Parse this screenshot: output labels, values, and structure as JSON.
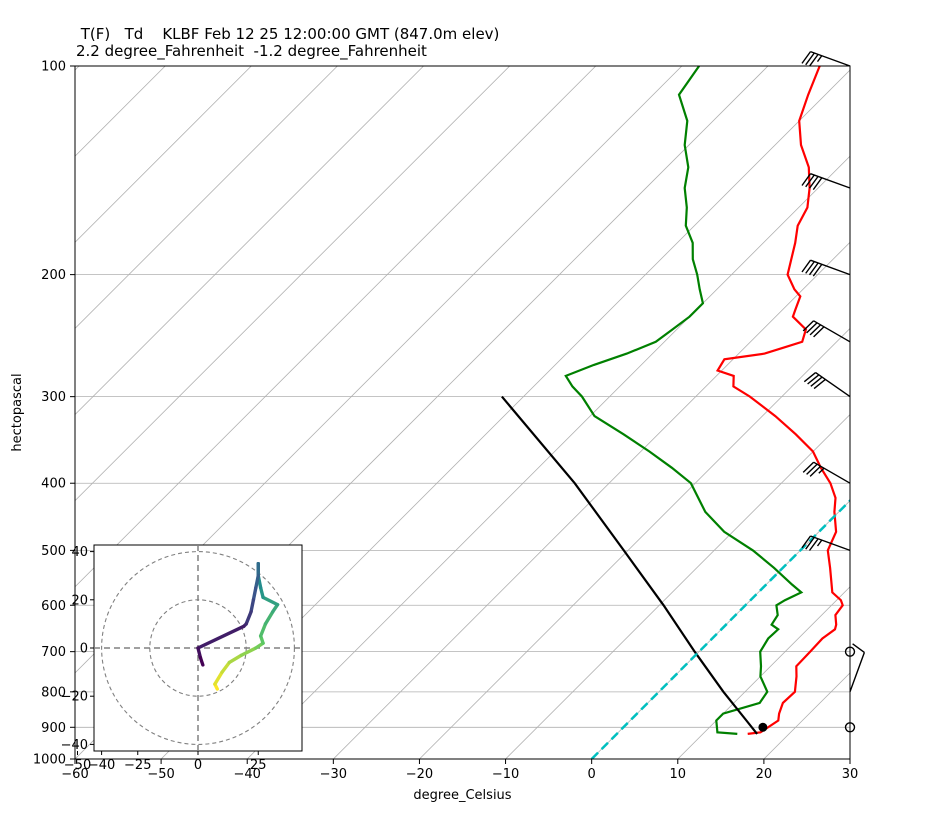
{
  "header": {
    "title_line1": " T(F)   Td    KLBF Feb 12 25 12:00:00 GMT (847.0m elev)",
    "title_line2": "2.2 degree_Fahrenheit  -1.2 degree_Fahrenheit"
  },
  "chart_data": [
    {
      "type": "line",
      "title": "",
      "xlabel": "degree_Celsius",
      "ylabel": "hectopascal",
      "xlim": [
        -60,
        30
      ],
      "ylim": [
        1000,
        100
      ],
      "y_scale": "log",
      "x_ticks": [
        -60,
        -50,
        -40,
        -30,
        -20,
        -10,
        0,
        10,
        20,
        30
      ],
      "x_tick_labels": [
        "−60",
        "−50",
        "−40",
        "−30",
        "−20",
        "−10",
        "0",
        "10",
        "20",
        "30"
      ],
      "y_ticks": [
        1000,
        900,
        800,
        700,
        600,
        500,
        400,
        300,
        200,
        100
      ],
      "grid": true,
      "skew_isotherms": true,
      "colors": {
        "temperature": "#ff0000",
        "dewpoint": "#008000",
        "parcel": "#000000",
        "zero_isotherm": "#00bfbf",
        "grid": "#b0b0b0"
      },
      "series": [
        {
          "role": "temperature",
          "points": [
            [
              920,
              15.2
            ],
            [
              915,
              16.5
            ],
            [
              880,
              17.2
            ],
            [
              860,
              16.5
            ],
            [
              830,
              15.7
            ],
            [
              800,
              15.8
            ],
            [
              760,
              14.2
            ],
            [
              735,
              13.0
            ],
            [
              700,
              12.9
            ],
            [
              670,
              12.8
            ],
            [
              650,
              13.2
            ],
            [
              640,
              12.8
            ],
            [
              620,
              11.6
            ],
            [
              600,
              11.3
            ],
            [
              590,
              10.5
            ],
            [
              575,
              8.6
            ],
            [
              560,
              7.6
            ],
            [
              530,
              5.5
            ],
            [
              500,
              3.2
            ],
            [
              470,
              2.0
            ],
            [
              440,
              -0.5
            ],
            [
              420,
              -2.0
            ],
            [
              400,
              -4.3
            ],
            [
              380,
              -7.2
            ],
            [
              360,
              -10.0
            ],
            [
              340,
              -14.0
            ],
            [
              320,
              -18.5
            ],
            [
              300,
              -23.7
            ],
            [
              290,
              -26.8
            ],
            [
              280,
              -28.0
            ],
            [
              275,
              -30.5
            ],
            [
              265,
              -31.0
            ],
            [
              260,
              -27.0
            ],
            [
              255,
              -25.5
            ],
            [
              250,
              -24.0
            ],
            [
              240,
              -25.0
            ],
            [
              230,
              -28.0
            ],
            [
              225,
              -28.5
            ],
            [
              215,
              -29.5
            ],
            [
              210,
              -31.0
            ],
            [
              200,
              -33.5
            ],
            [
              180,
              -36.3
            ],
            [
              170,
              -38.0
            ],
            [
              160,
              -39.0
            ],
            [
              150,
              -41.0
            ],
            [
              140,
              -43.5
            ],
            [
              130,
              -47.0
            ],
            [
              120,
              -50.0
            ],
            [
              110,
              -52.0
            ],
            [
              100,
              -54.0
            ]
          ]
        },
        {
          "role": "dewpoint",
          "points": [
            [
              920,
              14.0
            ],
            [
              915,
              11.5
            ],
            [
              880,
              10.0
            ],
            [
              860,
              10.0
            ],
            [
              830,
              13.0
            ],
            [
              800,
              12.6
            ],
            [
              760,
              10.0
            ],
            [
              735,
              8.9
            ],
            [
              700,
              7.1
            ],
            [
              670,
              6.5
            ],
            [
              650,
              6.6
            ],
            [
              640,
              5.3
            ],
            [
              620,
              4.9
            ],
            [
              600,
              3.6
            ],
            [
              590,
              4.0
            ],
            [
              575,
              5.0
            ],
            [
              560,
              3.0
            ],
            [
              530,
              -1.0
            ],
            [
              500,
              -5.5
            ],
            [
              470,
              -11.0
            ],
            [
              440,
              -15.5
            ],
            [
              400,
              -20.5
            ],
            [
              380,
              -24.5
            ],
            [
              360,
              -29.0
            ],
            [
              340,
              -34.0
            ],
            [
              320,
              -39.5
            ],
            [
              300,
              -43.2
            ],
            [
              290,
              -45.5
            ],
            [
              280,
              -47.5
            ],
            [
              270,
              -45.5
            ],
            [
              260,
              -43.0
            ],
            [
              250,
              -41.0
            ],
            [
              240,
              -40.5
            ],
            [
              230,
              -40.0
            ],
            [
              220,
              -40.0
            ],
            [
              210,
              -42.0
            ],
            [
              200,
              -44.0
            ],
            [
              190,
              -46.3
            ],
            [
              180,
              -48.2
            ],
            [
              170,
              -51.0
            ],
            [
              160,
              -53.0
            ],
            [
              150,
              -55.5
            ],
            [
              140,
              -57.5
            ],
            [
              130,
              -60.5
            ],
            [
              120,
              -63.0
            ],
            [
              110,
              -67.0
            ],
            [
              100,
              -68.0
            ]
          ]
        },
        {
          "role": "parcel",
          "points": [
            [
              920,
              16.3
            ],
            [
              880,
              13.5
            ],
            [
              800,
              7.5
            ],
            [
              700,
              -0.5
            ],
            [
              600,
              -9.5
            ],
            [
              500,
              -20.5
            ],
            [
              400,
              -34.0
            ],
            [
              300,
              -52.5
            ]
          ]
        },
        {
          "role": "zero_isotherm",
          "points": [
            [
              1000,
              0
            ],
            [
              100,
              0
            ]
          ]
        }
      ],
      "surface_point": {
        "pressure": 900,
        "temperature": 16.2
      },
      "wind_barbs": [
        {
          "pressure": 100,
          "speed_kt": 35,
          "direction": 290
        },
        {
          "pressure": 150,
          "speed_kt": 40,
          "direction": 290
        },
        {
          "pressure": 200,
          "speed_kt": 40,
          "direction": 290
        },
        {
          "pressure": 250,
          "speed_kt": 40,
          "direction": 300
        },
        {
          "pressure": 300,
          "speed_kt": 40,
          "direction": 305
        },
        {
          "pressure": 400,
          "speed_kt": 35,
          "direction": 300
        },
        {
          "pressure": 500,
          "speed_kt": 35,
          "direction": 290
        },
        {
          "pressure": 700,
          "speed_kt": 0,
          "direction": 0
        },
        {
          "pressure": 800,
          "speed_kt": 10,
          "direction": 20
        },
        {
          "pressure": 900,
          "speed_kt": 0,
          "direction": 0
        }
      ]
    },
    {
      "type": "hodograph",
      "title": "",
      "xlim": [
        -40,
        40
      ],
      "ylim": [
        -45,
        45
      ],
      "x_ticks": [
        -50,
        -40,
        -25,
        0,
        25
      ],
      "x_tick_labels": [
        "−50",
        "−40",
        "−25",
        "0",
        "25"
      ],
      "y_ticks": [
        40,
        20,
        0,
        -20,
        -40
      ],
      "y_tick_labels": [
        "40",
        "20",
        "0",
        "−20",
        "−40"
      ],
      "rings": [
        20,
        40
      ],
      "colormap": "viridis",
      "path": [
        [
          8,
          -17
        ],
        [
          7,
          -15
        ],
        [
          10,
          -10
        ],
        [
          13,
          -6
        ],
        [
          18,
          -3
        ],
        [
          24,
          0
        ],
        [
          27,
          2
        ],
        [
          26,
          5
        ],
        [
          28,
          10
        ],
        [
          31,
          15
        ],
        [
          33,
          18
        ],
        [
          27,
          21
        ],
        [
          26,
          25
        ],
        [
          25,
          30
        ],
        [
          25,
          35
        ],
        [
          25,
          35
        ],
        [
          25,
          30
        ],
        [
          24,
          25
        ],
        [
          23,
          20
        ],
        [
          22,
          15
        ],
        [
          20,
          10
        ],
        [
          19,
          9
        ],
        [
          0,
          0
        ],
        [
          1,
          -4
        ],
        [
          2,
          -7
        ]
      ]
    }
  ]
}
